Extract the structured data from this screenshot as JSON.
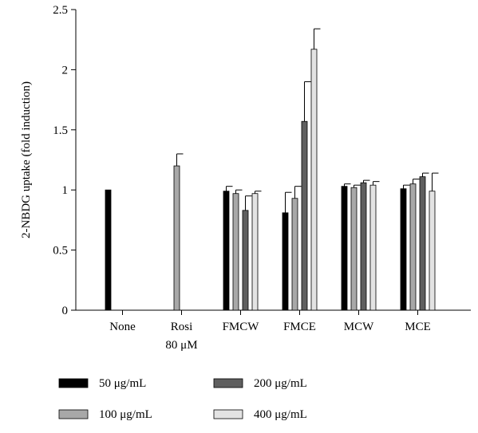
{
  "chart_data": {
    "type": "bar",
    "ylabel": "2-NBDG uptake (fold induction)",
    "ylim": [
      0,
      2.5
    ],
    "yticks": [
      "0",
      "0.5",
      "1",
      "1.5",
      "2",
      "2.5"
    ],
    "categories": [
      {
        "line1": "None",
        "line2": ""
      },
      {
        "line1": "Rosi",
        "line2": "80 μM"
      },
      {
        "line1": "FMCW",
        "line2": ""
      },
      {
        "line1": "FMCE",
        "line2": ""
      },
      {
        "line1": "MCW",
        "line2": ""
      },
      {
        "line1": "MCE",
        "line2": ""
      }
    ],
    "series": [
      {
        "name": "50 μg/mL",
        "color": "#000000",
        "values": [
          1.0,
          null,
          0.99,
          0.81,
          1.03,
          1.01
        ],
        "errors": [
          0,
          null,
          0.04,
          0.17,
          0.02,
          0.03
        ]
      },
      {
        "name": "100 μg/mL",
        "color": "#a8a8a8",
        "values": [
          null,
          1.2,
          0.97,
          0.93,
          1.02,
          1.05
        ],
        "errors": [
          null,
          0.1,
          0.03,
          0.1,
          0.02,
          0.04
        ]
      },
      {
        "name": "200 μg/mL",
        "color": "#5f5f5f",
        "values": [
          null,
          null,
          0.83,
          1.57,
          1.06,
          1.11
        ],
        "errors": [
          null,
          null,
          0.12,
          0.33,
          0.02,
          0.03
        ]
      },
      {
        "name": "400 μg/mL",
        "color": "#e3e3e3",
        "values": [
          null,
          null,
          0.97,
          2.17,
          1.04,
          0.99
        ],
        "errors": [
          null,
          null,
          0.02,
          0.17,
          0.03,
          0.15
        ]
      }
    ],
    "legend_placement": "bottom",
    "grid": false
  }
}
